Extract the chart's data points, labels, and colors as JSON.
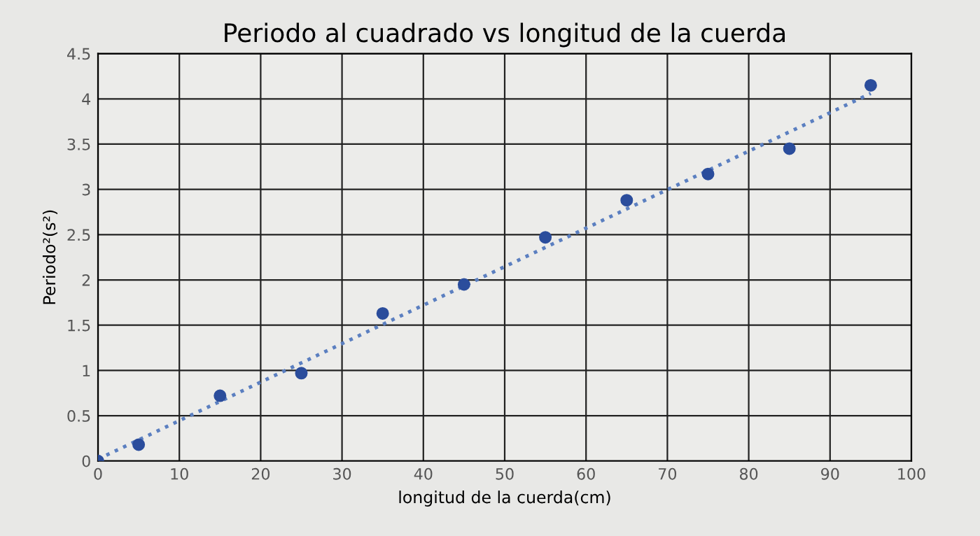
{
  "chart_data": {
    "type": "scatter",
    "title": "Periodo al cuadrado vs longitud de la cuerda",
    "xlabel": "longitud de la cuerda(cm)",
    "ylabel": "Periodo²(s²)",
    "series": [
      {
        "color": "#2b4d9c",
        "marker": "circle",
        "x": [
          0,
          5,
          15,
          25,
          35,
          45,
          55,
          65,
          75,
          85,
          95
        ],
        "values": [
          0,
          0.18,
          0.72,
          0.97,
          1.63,
          1.95,
          2.47,
          2.88,
          3.17,
          3.45,
          4.15
        ]
      },
      {
        "type": "line",
        "color": "#5b7fc0",
        "line_style": "dotted",
        "marker": "none",
        "x": [
          0,
          95
        ],
        "values": [
          0.02,
          4.06
        ]
      }
    ],
    "xlim": [
      0,
      100
    ],
    "xticks": [
      0,
      10,
      20,
      30,
      40,
      50,
      60,
      70,
      80,
      90,
      100
    ],
    "ylim": [
      0,
      4.5
    ],
    "yticks": [
      0,
      0.5,
      1,
      1.5,
      2,
      2.5,
      3,
      3.5,
      4,
      4.5
    ],
    "grid": true,
    "legend": false
  }
}
